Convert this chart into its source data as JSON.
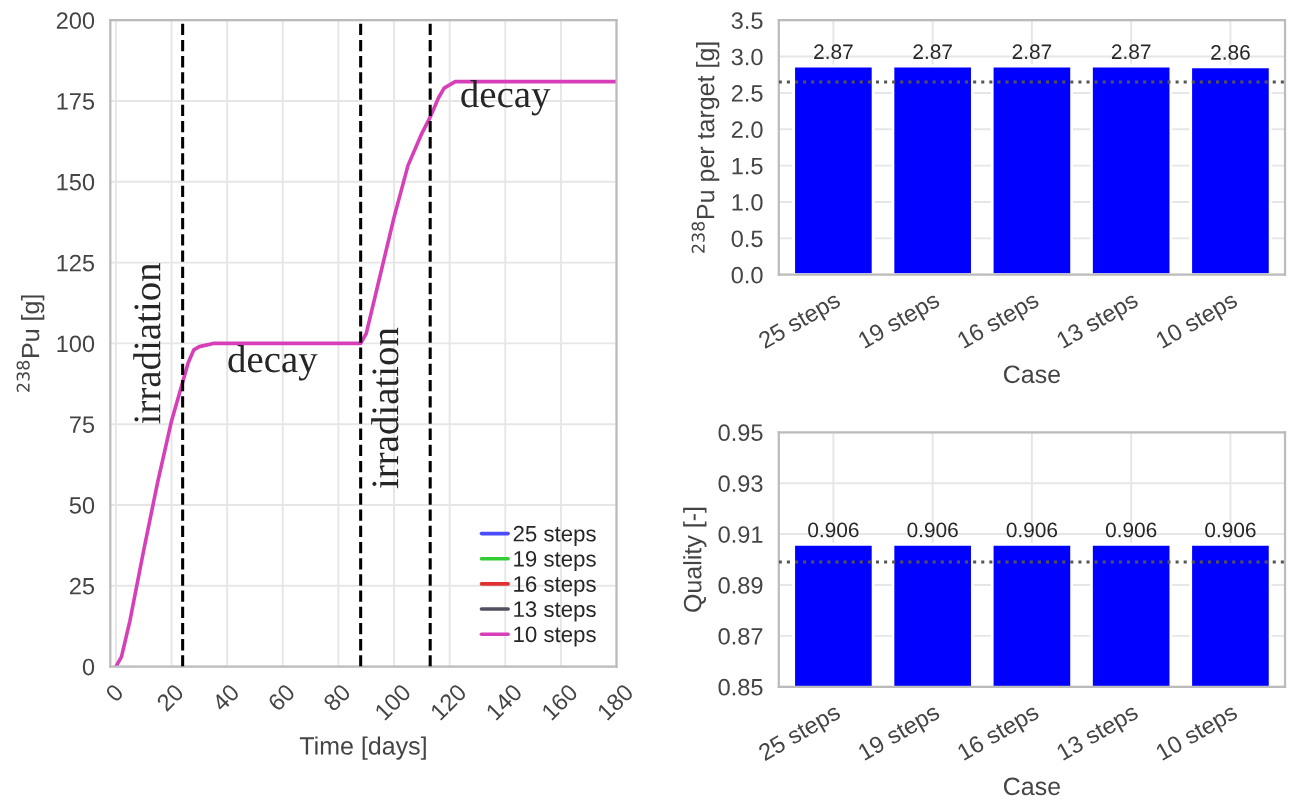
{
  "chart_data": [
    {
      "type": "line",
      "xlabel": "Time [days]",
      "ylabel": "$^{238}$Pu [g]",
      "x": [
        0,
        2,
        5,
        10,
        15,
        20,
        24,
        26,
        28,
        30,
        35,
        50,
        70,
        88,
        90,
        95,
        100,
        105,
        110,
        113,
        116,
        118,
        120,
        122,
        125,
        140,
        160,
        180
      ],
      "series": [
        {
          "name": "25 steps",
          "color": "#4c4cff",
          "values": [
            null,
            null,
            null,
            null,
            null,
            null,
            null,
            null,
            null,
            null,
            null,
            null,
            null,
            null,
            null,
            null,
            null,
            null,
            null,
            null,
            null,
            null,
            null,
            null,
            null,
            null,
            null,
            null
          ]
        },
        {
          "name": "19 steps",
          "color": "#33cc33",
          "values": [
            null,
            null,
            null,
            null,
            null,
            null,
            null,
            null,
            null,
            null,
            null,
            null,
            null,
            null,
            null,
            null,
            null,
            null,
            null,
            null,
            null,
            null,
            null,
            null,
            null,
            null,
            null,
            null
          ]
        },
        {
          "name": "16 steps",
          "color": "#e03030",
          "values": [
            null,
            null,
            null,
            null,
            null,
            null,
            null,
            null,
            null,
            null,
            null,
            null,
            null,
            null,
            null,
            null,
            null,
            null,
            null,
            null,
            null,
            null,
            null,
            null,
            null,
            null,
            null,
            null
          ]
        },
        {
          "name": "13 steps",
          "color": "#505060",
          "values": [
            null,
            null,
            null,
            null,
            null,
            null,
            null,
            null,
            null,
            null,
            null,
            null,
            null,
            null,
            null,
            null,
            null,
            null,
            null,
            null,
            null,
            null,
            null,
            null,
            null,
            null,
            null,
            null
          ]
        },
        {
          "name": "10 steps",
          "color": "#d63fb8",
          "values": [
            0,
            3,
            14,
            36,
            57,
            76,
            88,
            94,
            98,
            99,
            100,
            100,
            100,
            100,
            103,
            121,
            139,
            155,
            165,
            170,
            176,
            179,
            180,
            181,
            181,
            181,
            181,
            181
          ]
        }
      ],
      "xlim": [
        -2,
        180
      ],
      "xticks": [
        0,
        20,
        40,
        60,
        80,
        100,
        120,
        140,
        160,
        180
      ],
      "ylim": [
        0,
        200
      ],
      "yticks": [
        0,
        25,
        50,
        75,
        100,
        125,
        150,
        175,
        200
      ],
      "ref_lines": [
        {
          "axis": "x",
          "value": 24,
          "color": "#000000",
          "line_style": "dashed"
        },
        {
          "axis": "x",
          "value": 88,
          "color": "#000000",
          "line_style": "dashed"
        },
        {
          "axis": "x",
          "value": 113,
          "color": "#000000",
          "line_style": "dashed"
        }
      ],
      "annotations": [
        "irradiation",
        "decay",
        "irradiation",
        "decay"
      ],
      "grid": true,
      "legend": "bottom right",
      "line_style": "solid",
      "marker": "none"
    },
    {
      "type": "bar",
      "xlabel": "Case",
      "ylabel": "$^{238}$Pu per target [g]",
      "categories": [
        "25 steps",
        "19 steps",
        "16 steps",
        "13 steps",
        "10 steps"
      ],
      "values": [
        2.87,
        2.87,
        2.87,
        2.87,
        2.86
      ],
      "color": "#0000ff",
      "ylim": [
        0,
        3.5
      ],
      "yticks": [
        {
          "value": 0,
          "label": "0.0"
        },
        {
          "value": 0.5,
          "label": "0.5"
        },
        {
          "value": 1,
          "label": "1.0"
        },
        {
          "value": 1.5,
          "label": "1.5"
        },
        {
          "value": 2,
          "label": "2.0"
        },
        {
          "value": 2.5,
          "label": "2.5"
        },
        {
          "value": 3,
          "label": "3.0"
        },
        {
          "value": 3.5,
          "label": "3.5"
        }
      ],
      "ref_lines": [
        {
          "axis": "y",
          "value": 2.65,
          "color": "#555555",
          "line_style": "dotted"
        }
      ],
      "data_labels": true,
      "grid": true
    },
    {
      "type": "bar",
      "xlabel": "Case",
      "ylabel": "Quality [-]",
      "categories": [
        "25 steps",
        "19 steps",
        "16 steps",
        "13 steps",
        "10 steps"
      ],
      "values": [
        0.906,
        0.906,
        0.906,
        0.906,
        0.906
      ],
      "color": "#0000ff",
      "ylim": [
        0.85,
        0.95
      ],
      "yticks": [
        0.85,
        0.87,
        0.89,
        0.91,
        0.93,
        0.95
      ],
      "ref_lines": [
        {
          "axis": "y",
          "value": 0.899,
          "color": "#555555",
          "line_style": "dotted"
        }
      ],
      "data_labels": true,
      "grid": true
    }
  ]
}
